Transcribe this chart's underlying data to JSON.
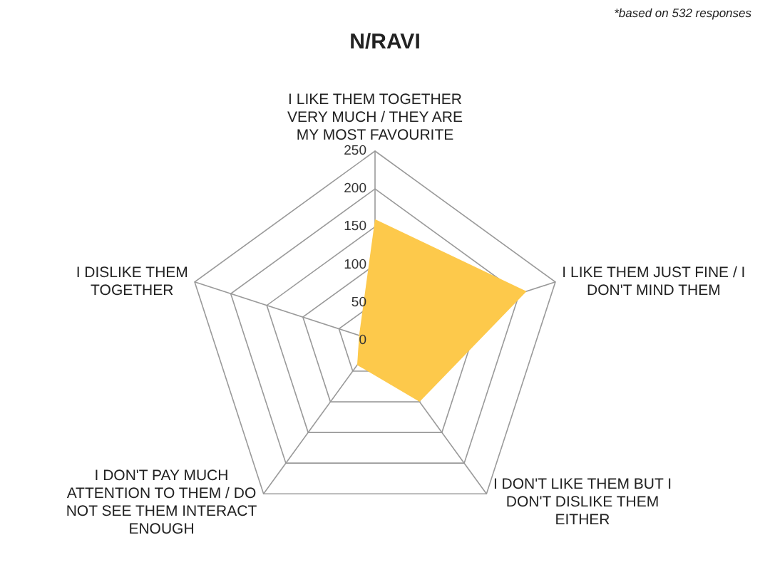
{
  "chart_data": {
    "type": "radar",
    "title": "N/RAVI",
    "annotations": [
      "*based on 532 responses"
    ],
    "categories": [
      "I LIKE THEM TOGETHER VERY MUCH / THEY ARE MY MOST FAVOURITE",
      "I LIKE THEM JUST FINE / I DON'T MIND THEM",
      "I DON'T LIKE THEM BUT I DON'T DISLIKE THEM EITHER",
      "I DON'T PAY MUCH ATTENTION TO THEM / DO NOT SEE THEM INTERACT ENOUGH",
      "I DISLIKE THEM TOGETHER"
    ],
    "series": [
      {
        "color": "#fdc94b",
        "values": [
          160,
          210,
          100,
          40,
          22
        ]
      }
    ],
    "ylim": [
      0,
      250
    ],
    "yticks": [
      0,
      50,
      100,
      150,
      200,
      250
    ],
    "grid": true
  }
}
